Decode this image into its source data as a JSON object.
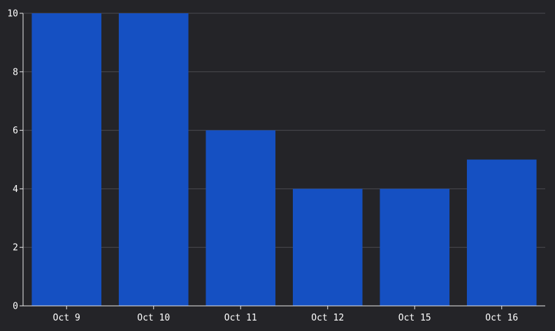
{
  "colors": {
    "background": "#242428",
    "bar": "#1550c2",
    "grid": "#4a4a4f",
    "axis": "#e8e8e8",
    "text": "#ffffff"
  },
  "chart_data": {
    "type": "bar",
    "title": "",
    "xlabel": "",
    "ylabel": "",
    "categories": [
      "Oct 9",
      "Oct 10",
      "Oct 11",
      "Oct 12",
      "Oct 15",
      "Oct 16"
    ],
    "values": [
      10,
      10,
      6,
      4,
      4,
      5
    ],
    "ylim": [
      0,
      10
    ],
    "yticks": [
      0,
      2,
      4,
      6,
      8,
      10
    ],
    "grid": true,
    "legend": "none"
  }
}
